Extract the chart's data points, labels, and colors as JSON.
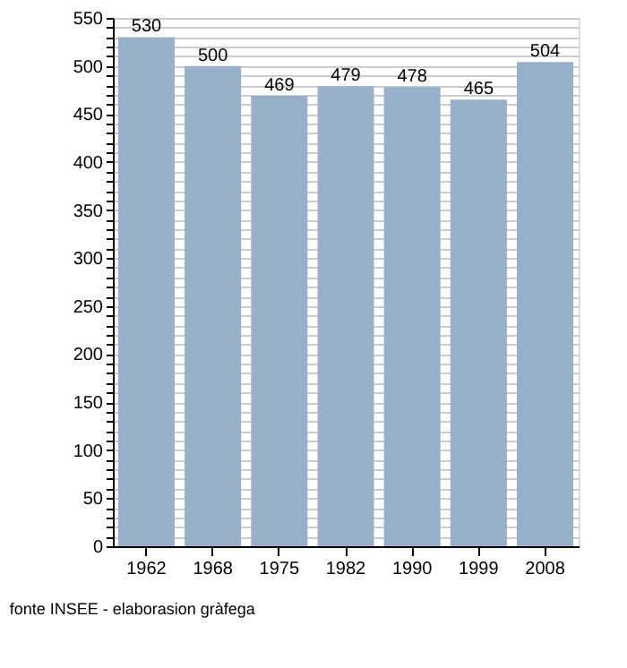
{
  "chart_data": {
    "type": "bar",
    "categories": [
      "1962",
      "1968",
      "1975",
      "1982",
      "1990",
      "1999",
      "2008"
    ],
    "values": [
      530,
      500,
      469,
      479,
      478,
      465,
      504
    ],
    "color": "#98b0cb",
    "data_labels": true,
    "grid": "y",
    "ylim": [
      0,
      550
    ],
    "yticks": [
      0,
      {
        "value": 10,
        "label": null
      },
      {
        "value": 20,
        "label": null
      },
      {
        "value": 30,
        "label": null
      },
      {
        "value": 40,
        "label": null
      },
      50,
      {
        "value": 60,
        "label": null
      },
      {
        "value": 70,
        "label": null
      },
      {
        "value": 80,
        "label": null
      },
      {
        "value": 90,
        "label": null
      },
      100,
      {
        "value": 110,
        "label": null
      },
      {
        "value": 120,
        "label": null
      },
      {
        "value": 130,
        "label": null
      },
      {
        "value": 140,
        "label": null
      },
      150,
      {
        "value": 160,
        "label": null
      },
      {
        "value": 170,
        "label": null
      },
      {
        "value": 180,
        "label": null
      },
      {
        "value": 190,
        "label": null
      },
      200,
      {
        "value": 210,
        "label": null
      },
      {
        "value": 220,
        "label": null
      },
      {
        "value": 230,
        "label": null
      },
      {
        "value": 240,
        "label": null
      },
      250,
      {
        "value": 260,
        "label": null
      },
      {
        "value": 270,
        "label": null
      },
      {
        "value": 280,
        "label": null
      },
      {
        "value": 290,
        "label": null
      },
      300,
      {
        "value": 310,
        "label": null
      },
      {
        "value": 320,
        "label": null
      },
      {
        "value": 330,
        "label": null
      },
      {
        "value": 340,
        "label": null
      },
      350,
      {
        "value": 360,
        "label": null
      },
      {
        "value": 370,
        "label": null
      },
      {
        "value": 380,
        "label": null
      },
      {
        "value": 390,
        "label": null
      },
      400,
      {
        "value": 410,
        "label": null
      },
      {
        "value": 420,
        "label": null
      },
      {
        "value": 430,
        "label": null
      },
      {
        "value": 440,
        "label": null
      },
      450,
      {
        "value": 460,
        "label": null
      },
      {
        "value": 470,
        "label": null
      },
      {
        "value": 480,
        "label": null
      },
      {
        "value": 490,
        "label": null
      },
      500,
      {
        "value": 510,
        "label": null
      },
      {
        "value": 520,
        "label": null
      },
      {
        "value": 530,
        "label": null
      },
      {
        "value": 540,
        "label": null
      },
      550
    ],
    "annotations": [
      "fonte INSEE - elaborasion gràfega"
    ]
  }
}
